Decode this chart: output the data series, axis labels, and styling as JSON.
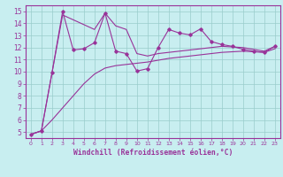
{
  "xlabel": "Windchill (Refroidissement éolien,°C)",
  "bg_color": "#c8eef0",
  "line_color": "#993399",
  "grid_color": "#99cccc",
  "spine_color": "#993399",
  "xlim": [
    -0.5,
    23.5
  ],
  "ylim": [
    4.5,
    15.5
  ],
  "xticks": [
    0,
    1,
    2,
    3,
    4,
    5,
    6,
    7,
    8,
    9,
    10,
    11,
    12,
    13,
    14,
    15,
    16,
    17,
    18,
    19,
    20,
    21,
    22,
    23
  ],
  "yticks": [
    5,
    6,
    7,
    8,
    9,
    10,
    11,
    12,
    13,
    14,
    15
  ],
  "line_jagged_x": [
    0,
    1,
    2,
    3,
    4,
    5,
    6,
    7,
    8,
    9,
    10,
    11,
    12,
    13,
    14,
    15,
    16,
    17,
    18,
    19,
    20,
    21,
    22,
    23
  ],
  "line_jagged_y": [
    4.8,
    5.1,
    9.9,
    15.0,
    11.8,
    11.9,
    12.4,
    14.85,
    11.7,
    11.5,
    10.05,
    10.25,
    12.0,
    13.5,
    13.2,
    13.05,
    13.55,
    12.5,
    12.25,
    12.1,
    11.85,
    11.7,
    11.6,
    12.1
  ],
  "line_upper_x": [
    0,
    1,
    2,
    3,
    4,
    5,
    6,
    7,
    8,
    9,
    10,
    11,
    12,
    13,
    14,
    15,
    16,
    17,
    18,
    19,
    20,
    21,
    22,
    23
  ],
  "line_upper_y": [
    4.8,
    5.1,
    9.9,
    14.7,
    14.3,
    13.9,
    13.5,
    14.85,
    13.8,
    13.5,
    11.5,
    11.3,
    11.5,
    11.6,
    11.7,
    11.8,
    11.9,
    12.0,
    12.1,
    12.05,
    12.0,
    11.85,
    11.7,
    12.1
  ],
  "line_lower_x": [
    0,
    1,
    2,
    3,
    4,
    5,
    6,
    7,
    8,
    9,
    10,
    11,
    12,
    13,
    14,
    15,
    16,
    17,
    18,
    19,
    20,
    21,
    22,
    23
  ],
  "line_lower_y": [
    4.8,
    5.1,
    6.0,
    7.0,
    8.0,
    9.0,
    9.8,
    10.3,
    10.5,
    10.6,
    10.7,
    10.8,
    10.95,
    11.1,
    11.2,
    11.3,
    11.4,
    11.5,
    11.6,
    11.65,
    11.7,
    11.65,
    11.6,
    11.9
  ]
}
